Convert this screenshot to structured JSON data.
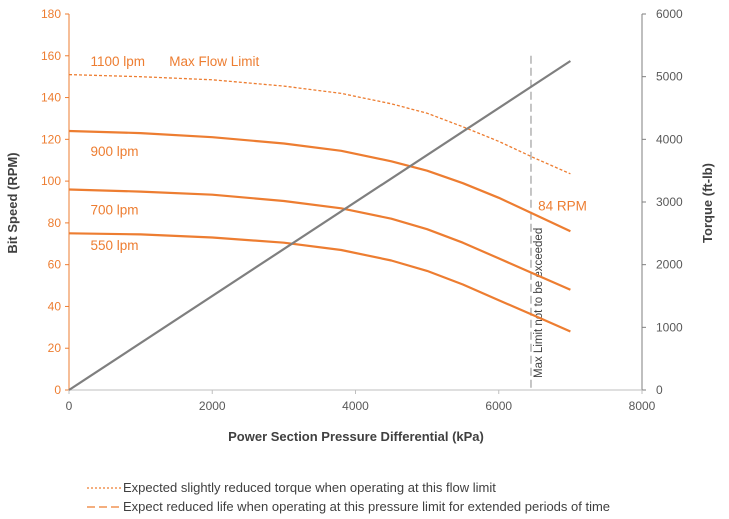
{
  "chart_data": {
    "type": "line",
    "title": "",
    "xlabel": "Power Section Pressure Differential (kPa)",
    "ylabel": "Bit Speed (RPM)",
    "y2label": "Torque (ft-lb)",
    "xlim": [
      0,
      8000
    ],
    "ylim": [
      0,
      180
    ],
    "y2lim": [
      0,
      6000
    ],
    "x_ticks": [
      "0",
      "2000",
      "4000",
      "6000",
      "8000"
    ],
    "y_ticks": [
      "0",
      "20",
      "40",
      "60",
      "80",
      "100",
      "120",
      "140",
      "160",
      "180"
    ],
    "y2_ticks": [
      "0",
      "1000",
      "2000",
      "3000",
      "4000",
      "5000",
      "6000"
    ],
    "grid": false,
    "colors": {
      "flow": "#ed7d31",
      "torque": "#7f7f7f",
      "limit": "#a6a6a6"
    },
    "series": [
      {
        "name": "1100 lpm",
        "axis": "left",
        "style": "dotted",
        "x": [
          0,
          1000,
          2000,
          3000,
          3800,
          4500,
          5000,
          5500,
          6000,
          6500,
          7000
        ],
        "y": [
          151,
          150,
          148.5,
          145.5,
          142,
          137,
          132.5,
          126,
          119,
          111,
          103.5
        ]
      },
      {
        "name": "900 lpm",
        "axis": "left",
        "style": "solid",
        "x": [
          0,
          1000,
          2000,
          3000,
          3800,
          4500,
          5000,
          5500,
          6000,
          6500,
          7000
        ],
        "y": [
          124,
          123,
          121,
          118,
          114.5,
          109.5,
          105,
          99,
          92,
          84,
          76
        ]
      },
      {
        "name": "700 lpm",
        "axis": "left",
        "style": "solid",
        "x": [
          0,
          1000,
          2000,
          3000,
          3800,
          4500,
          5000,
          5500,
          6000,
          6500,
          7000
        ],
        "y": [
          96,
          95,
          93.5,
          90.5,
          87,
          82,
          77,
          70.5,
          63,
          55.5,
          48
        ]
      },
      {
        "name": "550 lpm",
        "axis": "left",
        "style": "solid",
        "x": [
          0,
          1000,
          2000,
          3000,
          3800,
          4500,
          5000,
          5500,
          6000,
          6500,
          7000
        ],
        "y": [
          75,
          74.5,
          73,
          70.5,
          67,
          62,
          57,
          50.5,
          43,
          35.5,
          28
        ]
      },
      {
        "name": "Torque",
        "axis": "right",
        "style": "solid",
        "x": [
          0,
          7000
        ],
        "y": [
          0,
          5250
        ]
      }
    ],
    "reference_line": {
      "x": 6450,
      "label": "Max Limit not to be exceeded"
    },
    "annotations": {
      "lpm1100": {
        "text": "1100 lpm",
        "x": 300,
        "y": 155
      },
      "max_flow": {
        "text": "Max Flow Limit",
        "x": 1400,
        "y": 155
      },
      "lpm900": {
        "text": "900 lpm",
        "x": 300,
        "y": 112
      },
      "lpm700": {
        "text": "700 lpm",
        "x": 300,
        "y": 84
      },
      "lpm550": {
        "text": "550 lpm",
        "x": 300,
        "y": 67
      },
      "rpm84": {
        "text": "84 RPM",
        "x": 6550,
        "y": 86
      }
    },
    "legend": [
      {
        "text": "Expected slightly reduced torque when operating at this flow limit",
        "style": "dotted"
      },
      {
        "text": "Expect reduced life when operating at this pressure limit for extended periods of time",
        "style": "dashed"
      }
    ],
    "legend_position": "bottom"
  }
}
